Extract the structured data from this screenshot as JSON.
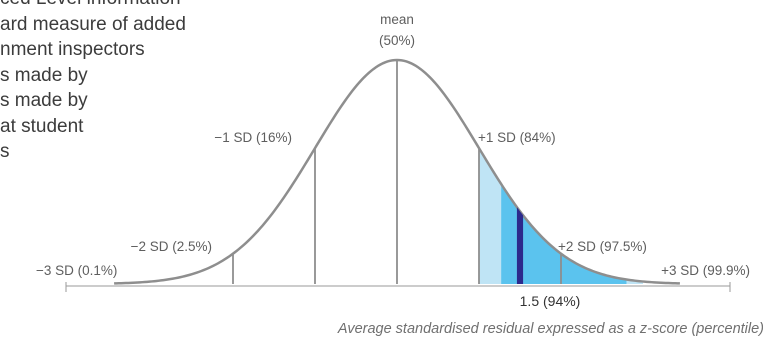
{
  "intro_lines": [
    "ced Level information",
    "ard measure of added",
    "nment inspectors",
    "s made by",
    "s made by",
    "at student",
    "s"
  ],
  "chart_data": {
    "type": "area",
    "distribution": "normal",
    "xlabel": "Average standardised residual expressed as a z-score (percentile)",
    "xlim": [
      -3.5,
      3.5
    ],
    "mean_label": [
      "mean",
      "(50%)"
    ],
    "sd_lines": [
      {
        "z": -3,
        "label": "−3 SD (0.1%)"
      },
      {
        "z": -2,
        "label": "−2 SD (2.5%)"
      },
      {
        "z": -1,
        "label": "−1 SD (16%)"
      },
      {
        "z": 0,
        "label": "mean (50%)"
      },
      {
        "z": 1,
        "label": "+1 SD (84%)"
      },
      {
        "z": 2,
        "label": "+2 SD (97.5%)"
      },
      {
        "z": 3,
        "label": "+3 SD (99.9%)"
      }
    ],
    "shaded_regions": [
      {
        "from": 1.0,
        "to": 1.27,
        "color": "#bfe4f5"
      },
      {
        "from": 1.27,
        "to": 2.8,
        "color": "#5bc3ee"
      },
      {
        "from": 2.8,
        "to": 3.0,
        "color": "#bfe4f5"
      }
    ],
    "marker": {
      "z": 1.5,
      "label": "1.5 (94%)",
      "color": "#2c2a8c"
    },
    "curve_color": "#8e8e8e"
  }
}
